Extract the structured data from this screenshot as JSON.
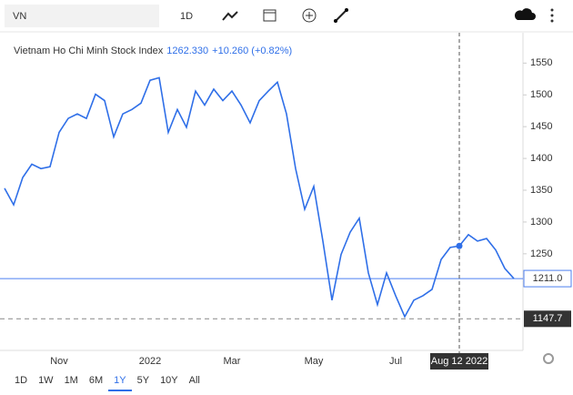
{
  "header": {
    "symbol": "VN",
    "interval": "1D"
  },
  "chart_data": {
    "type": "line",
    "title": "Vietnam Ho Chi Minh Stock Index",
    "price": "1262.330",
    "change": "+10.260 (+0.82%)",
    "categories": [
      null,
      null,
      null,
      null,
      null,
      null,
      "Nov",
      null,
      null,
      null,
      null,
      null,
      null,
      null,
      null,
      null,
      "2022",
      null,
      null,
      null,
      null,
      null,
      null,
      null,
      null,
      "Mar",
      null,
      null,
      null,
      null,
      null,
      null,
      null,
      null,
      "May",
      null,
      null,
      null,
      null,
      null,
      null,
      null,
      null,
      "Jul",
      null,
      null,
      null,
      null,
      null,
      null,
      "Aug 12 2022",
      null,
      null,
      null,
      null,
      null,
      null
    ],
    "series": [
      {
        "name": "VN",
        "color": "#2f6fe8",
        "values": [
          1353,
          1327,
          1370,
          1391,
          1384,
          1387,
          1441,
          1463,
          1470,
          1463,
          1501,
          1491,
          1434,
          1470,
          1477,
          1487,
          1523,
          1527,
          1441,
          1477,
          1449,
          1506,
          1484,
          1509,
          1491,
          1506,
          1484,
          1456,
          1491,
          1506,
          1520,
          1470,
          1384,
          1320,
          1356,
          1270,
          1177,
          1249,
          1284,
          1306,
          1220,
          1170,
          1220,
          1184,
          1151,
          1177,
          1184,
          1194,
          1241,
          1260,
          1262.33,
          1280,
          1270,
          1274,
          1256,
          1227,
          1211
        ]
      }
    ],
    "crosshair": true,
    "ylim": [
      1098,
      1592
    ],
    "yticks": [
      1250,
      1300,
      1350,
      1400,
      1450,
      1500,
      1550
    ],
    "reference_lines": [
      {
        "value": 1211,
        "label": "1211.0",
        "style": "solid",
        "color": "#4d7ff0"
      },
      {
        "value": 1147.7,
        "label": "1147.7",
        "style": "dashed",
        "color": "#888888"
      }
    ]
  },
  "ranges": {
    "items": [
      "1D",
      "1W",
      "1M",
      "6M",
      "1Y",
      "5Y",
      "10Y",
      "All"
    ],
    "selected": 4
  }
}
